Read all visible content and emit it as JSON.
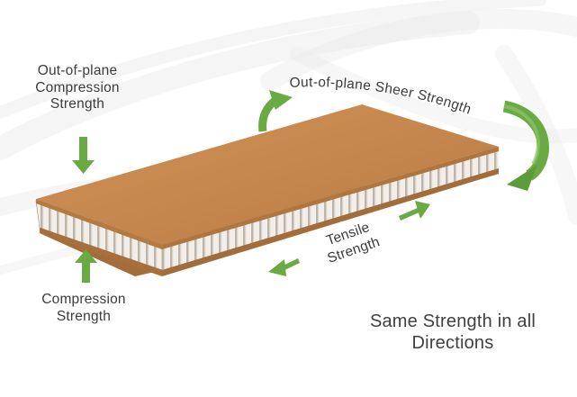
{
  "labels": {
    "out_of_plane_compression": [
      "Out-of-plane",
      "Compression",
      "Strength"
    ],
    "out_of_plane_sheer": "Out-of-plane Sheer Strength",
    "tensile": [
      "Tensile",
      "Strength"
    ],
    "compression": [
      "Compression",
      "Strength"
    ],
    "summary": [
      "Same Strength in all",
      "Directions"
    ]
  },
  "colors": {
    "arrow_green": "#6aaa45",
    "arrow_green_dark": "#4f8f33",
    "panel_top": "#c7894f",
    "panel_edge": "#a8733e",
    "honeycomb": "#eeeae4",
    "text": "#3c3c3c",
    "background_swirl": "#e9e9e9"
  },
  "icons": [
    "down-arrow-icon",
    "up-arrow-icon",
    "curved-up-arrow-icon",
    "curved-around-arrow-icon",
    "right-diagonal-arrow-icon",
    "left-diagonal-arrow-icon"
  ]
}
